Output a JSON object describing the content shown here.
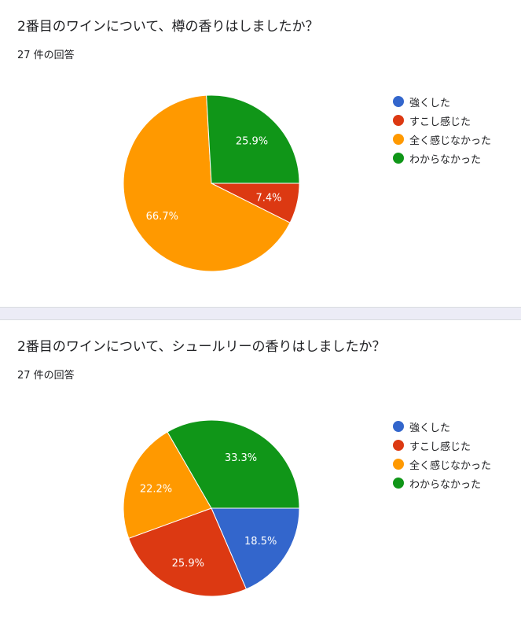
{
  "questions": [
    {
      "title": "2番目のワインについて、樽の香りはしましたか？",
      "response_count": "27 件の回答"
    },
    {
      "title": "2番目のワインについて、シュールリーの香りはしましたか？",
      "response_count": "27 件の回答"
    }
  ],
  "chart_data": [
    {
      "type": "pie",
      "categories": [
        "強くした",
        "すこし感じた",
        "全く感じなかった",
        "わからなかった"
      ],
      "colors": [
        "#3366cc",
        "#dc3912",
        "#ff9900",
        "#109618"
      ],
      "values": [
        0,
        7.4,
        66.7,
        25.9
      ],
      "value_labels": [
        "",
        "7.4%",
        "66.7%",
        "25.9%"
      ],
      "legend_position": "right"
    },
    {
      "type": "pie",
      "categories": [
        "強くした",
        "すこし感じた",
        "全く感じなかった",
        "わからなかった"
      ],
      "colors": [
        "#3366cc",
        "#dc3912",
        "#ff9900",
        "#109618"
      ],
      "values": [
        18.5,
        25.9,
        22.2,
        33.3
      ],
      "value_labels": [
        "18.5%",
        "25.9%",
        "22.2%",
        "33.3%"
      ],
      "legend_position": "right"
    }
  ]
}
